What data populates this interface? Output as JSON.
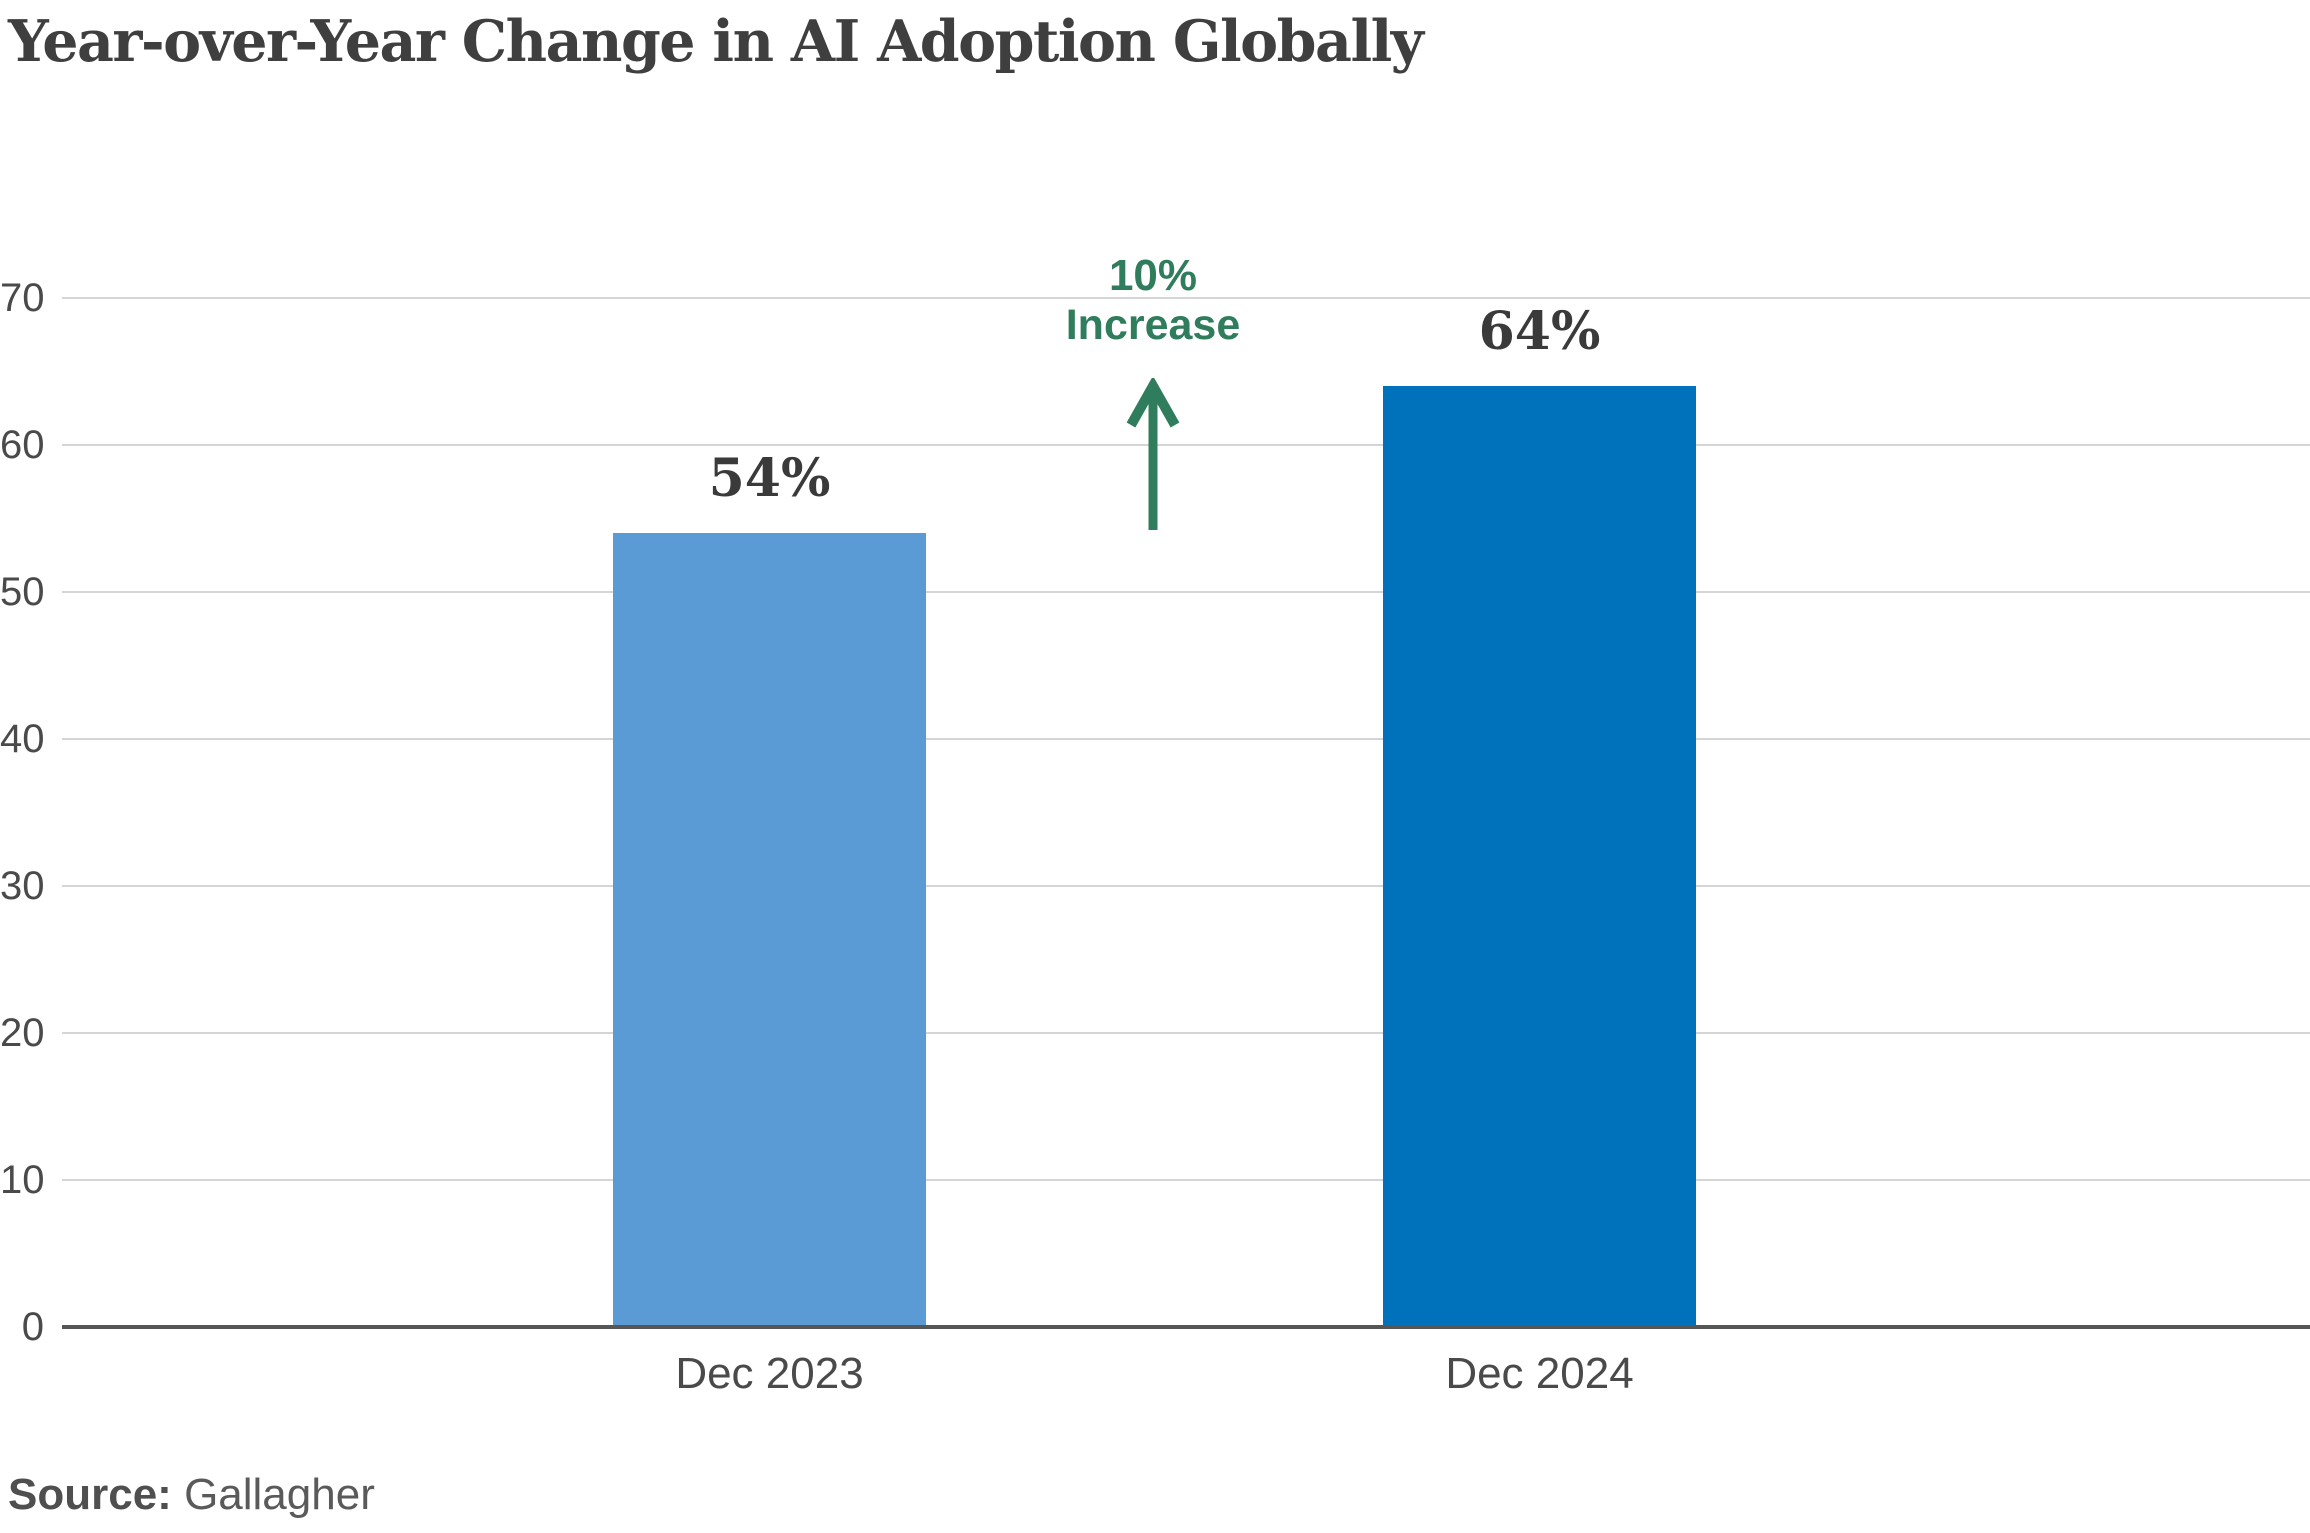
{
  "title": "Year-over-Year Change in AI Adoption Globally",
  "annotation": {
    "line1": "10%",
    "line2": "Increase",
    "color": "#2F7D5D",
    "arrow_icon": "up-arrow-icon"
  },
  "source": {
    "label": "Source:",
    "name": "Gallagher"
  },
  "colors": {
    "bar_dec_2023": "#5B9BD5",
    "bar_dec_2024": "#0072BC",
    "gridline": "#D5D5D5",
    "axis_baseline": "#565656",
    "tick_text": "#4A4A4A",
    "title_text": "#3F3F3F"
  },
  "chart_data": {
    "type": "bar",
    "title": "Year-over-Year Change in AI Adoption Globally",
    "categories": [
      "Dec 2023",
      "Dec 2024"
    ],
    "values": [
      54,
      64
    ],
    "value_labels": [
      "54%",
      "64%"
    ],
    "series_colors": [
      "#5B9BD5",
      "#0072BC"
    ],
    "xlabel": "",
    "ylabel": "",
    "ylim": [
      0,
      70
    ],
    "yticks": [
      0,
      10,
      20,
      30,
      40,
      50,
      60,
      70
    ],
    "grid": "horizontal gridlines, light gray",
    "legend": "none",
    "annotation": "10% Increase (green up arrow between the two bars)",
    "source": "Gallagher"
  }
}
